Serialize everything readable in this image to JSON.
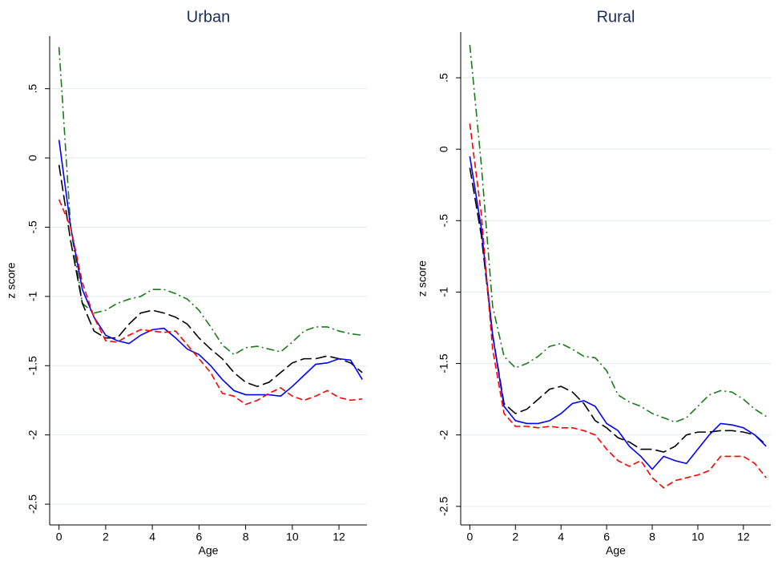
{
  "chart_data": [
    {
      "type": "line",
      "title": "Urban",
      "xlabel": "Age",
      "ylabel": "z score",
      "x": [
        0,
        0.5,
        1,
        1.5,
        2,
        2.5,
        3,
        3.5,
        4,
        4.5,
        5,
        5.5,
        6,
        6.5,
        7,
        7.5,
        8,
        8.5,
        9,
        9.5,
        10,
        10.5,
        11,
        11.5,
        12,
        12.5,
        13
      ],
      "xlim": [
        -0.4,
        13.2
      ],
      "ylim": [
        -2.65,
        0.88
      ],
      "xticks": [
        0,
        2,
        4,
        6,
        8,
        10,
        12
      ],
      "yticks": [
        {
          "value": 0.5,
          "label": ".5"
        },
        0,
        {
          "value": -0.5,
          "label": "-.5"
        },
        -1,
        -1.5,
        -2,
        -2.5
      ],
      "grid": true,
      "series": [
        {
          "color": "#1a7a1a",
          "linestyle": "dashdot",
          "values": [
            0.8,
            -0.5,
            -1.05,
            -1.12,
            -1.1,
            -1.05,
            -1.02,
            -1.0,
            -0.95,
            -0.95,
            -0.98,
            -1.02,
            -1.1,
            -1.22,
            -1.35,
            -1.42,
            -1.37,
            -1.36,
            -1.38,
            -1.4,
            -1.33,
            -1.25,
            -1.22,
            -1.22,
            -1.25,
            -1.27,
            -1.28
          ]
        },
        {
          "color": "#000000",
          "linestyle": "longdash",
          "values": [
            -0.05,
            -0.6,
            -1.05,
            -1.25,
            -1.3,
            -1.3,
            -1.2,
            -1.12,
            -1.1,
            -1.12,
            -1.15,
            -1.2,
            -1.3,
            -1.38,
            -1.45,
            -1.55,
            -1.62,
            -1.65,
            -1.62,
            -1.55,
            -1.48,
            -1.45,
            -1.45,
            -1.43,
            -1.45,
            -1.48,
            -1.55
          ]
        },
        {
          "color": "#0000ff",
          "linestyle": "solid",
          "values": [
            0.13,
            -0.5,
            -0.95,
            -1.15,
            -1.28,
            -1.32,
            -1.34,
            -1.28,
            -1.24,
            -1.23,
            -1.3,
            -1.38,
            -1.42,
            -1.5,
            -1.6,
            -1.68,
            -1.71,
            -1.71,
            -1.71,
            -1.72,
            -1.65,
            -1.57,
            -1.49,
            -1.48,
            -1.45,
            -1.46,
            -1.6
          ]
        },
        {
          "color": "#ff0000",
          "linestyle": "dash",
          "values": [
            -0.3,
            -0.5,
            -0.9,
            -1.15,
            -1.32,
            -1.33,
            -1.28,
            -1.24,
            -1.25,
            -1.26,
            -1.25,
            -1.35,
            -1.45,
            -1.55,
            -1.7,
            -1.72,
            -1.78,
            -1.75,
            -1.7,
            -1.66,
            -1.72,
            -1.75,
            -1.72,
            -1.68,
            -1.73,
            -1.75,
            -1.74
          ]
        }
      ]
    },
    {
      "type": "line",
      "title": "Rural",
      "xlabel": "Age",
      "ylabel": "z score",
      "x": [
        0,
        0.5,
        1,
        1.5,
        2,
        2.5,
        3,
        3.5,
        4,
        4.5,
        5,
        5.5,
        6,
        6.5,
        7,
        7.5,
        8,
        8.5,
        9,
        9.5,
        10,
        10.5,
        11,
        11.5,
        12,
        12.5,
        13
      ],
      "xlim": [
        -0.4,
        13.2
      ],
      "ylim": [
        -2.63,
        0.82
      ],
      "xticks": [
        0,
        2,
        4,
        6,
        8,
        10,
        12
      ],
      "yticks": [
        {
          "value": 0.5,
          "label": ".5"
        },
        0,
        {
          "value": -0.5,
          "label": "-.5"
        },
        -1,
        -1.5,
        -2,
        -2.5
      ],
      "grid": true,
      "series": [
        {
          "color": "#1a7a1a",
          "linestyle": "dashdot",
          "values": [
            0.73,
            -0.1,
            -1.1,
            -1.45,
            -1.53,
            -1.5,
            -1.45,
            -1.38,
            -1.36,
            -1.4,
            -1.45,
            -1.46,
            -1.55,
            -1.72,
            -1.77,
            -1.8,
            -1.85,
            -1.88,
            -1.91,
            -1.88,
            -1.8,
            -1.72,
            -1.69,
            -1.7,
            -1.75,
            -1.82,
            -1.87
          ]
        },
        {
          "color": "#000000",
          "linestyle": "longdash",
          "values": [
            -0.13,
            -0.6,
            -1.3,
            -1.78,
            -1.85,
            -1.82,
            -1.75,
            -1.68,
            -1.66,
            -1.7,
            -1.78,
            -1.9,
            -1.95,
            -2.02,
            -2.05,
            -2.1,
            -2.1,
            -2.12,
            -2.08,
            -2.0,
            -1.98,
            -1.98,
            -1.97,
            -1.97,
            -1.98,
            -2.0,
            -2.07
          ]
        },
        {
          "color": "#0000ff",
          "linestyle": "solid",
          "values": [
            -0.05,
            -0.55,
            -1.3,
            -1.8,
            -1.9,
            -1.92,
            -1.92,
            -1.9,
            -1.85,
            -1.78,
            -1.76,
            -1.8,
            -1.92,
            -1.97,
            -2.08,
            -2.15,
            -2.24,
            -2.15,
            -2.18,
            -2.2,
            -2.1,
            -2.0,
            -1.92,
            -1.93,
            -1.95,
            -2.0,
            -2.08
          ]
        },
        {
          "color": "#ff0000",
          "linestyle": "dash",
          "values": [
            0.18,
            -0.45,
            -1.4,
            -1.85,
            -1.94,
            -1.94,
            -1.95,
            -1.94,
            -1.95,
            -1.95,
            -1.97,
            -2.0,
            -2.1,
            -2.18,
            -2.22,
            -2.18,
            -2.3,
            -2.37,
            -2.32,
            -2.3,
            -2.28,
            -2.25,
            -2.15,
            -2.15,
            -2.15,
            -2.2,
            -2.3
          ]
        }
      ]
    }
  ]
}
